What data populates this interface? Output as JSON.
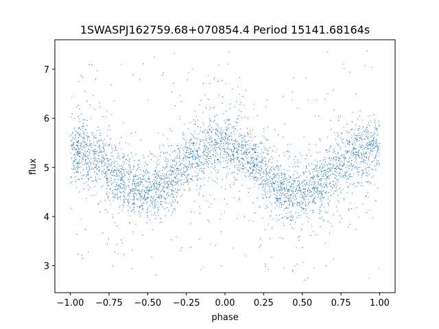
{
  "chart_data": {
    "type": "scatter",
    "title": "1SWASPJ162759.68+070854.4 Period 15141.68164s",
    "xlabel": "phase",
    "ylabel": "flux",
    "xlim": [
      -1.1,
      1.1
    ],
    "ylim": [
      2.45,
      7.6
    ],
    "x_ticks": [
      -1.0,
      -0.75,
      -0.5,
      -0.25,
      0.0,
      0.25,
      0.5,
      0.75,
      1.0
    ],
    "x_tick_labels": [
      "−1.00",
      "−0.75",
      "−0.50",
      "−0.25",
      "0.00",
      "0.25",
      "0.50",
      "0.75",
      "1.00"
    ],
    "y_ticks": [
      3,
      4,
      5,
      6,
      7
    ],
    "y_tick_labels": [
      "3",
      "4",
      "5",
      "6",
      "7"
    ],
    "grid": false,
    "point_color": "#1f77b4",
    "series": [
      {
        "x_range": [
          -1.0,
          1.0
        ],
        "x": [
          -1.0,
          -0.9,
          -0.8,
          -0.7,
          -0.6,
          -0.5,
          -0.4,
          -0.3,
          -0.2,
          -0.1,
          0.0,
          0.1,
          0.2,
          0.3,
          0.4,
          0.5,
          0.6,
          0.7,
          0.8,
          0.9,
          1.0
        ],
        "y_mean": [
          5.4,
          5.3,
          5.1,
          4.85,
          4.6,
          4.5,
          4.65,
          4.95,
          5.2,
          5.4,
          5.45,
          5.3,
          5.05,
          4.75,
          4.5,
          4.45,
          4.6,
          4.9,
          5.2,
          5.35,
          5.45
        ],
        "y_scatter_core": 0.3,
        "y_outlier_range": [
          2.7,
          7.4
        ]
      }
    ]
  }
}
